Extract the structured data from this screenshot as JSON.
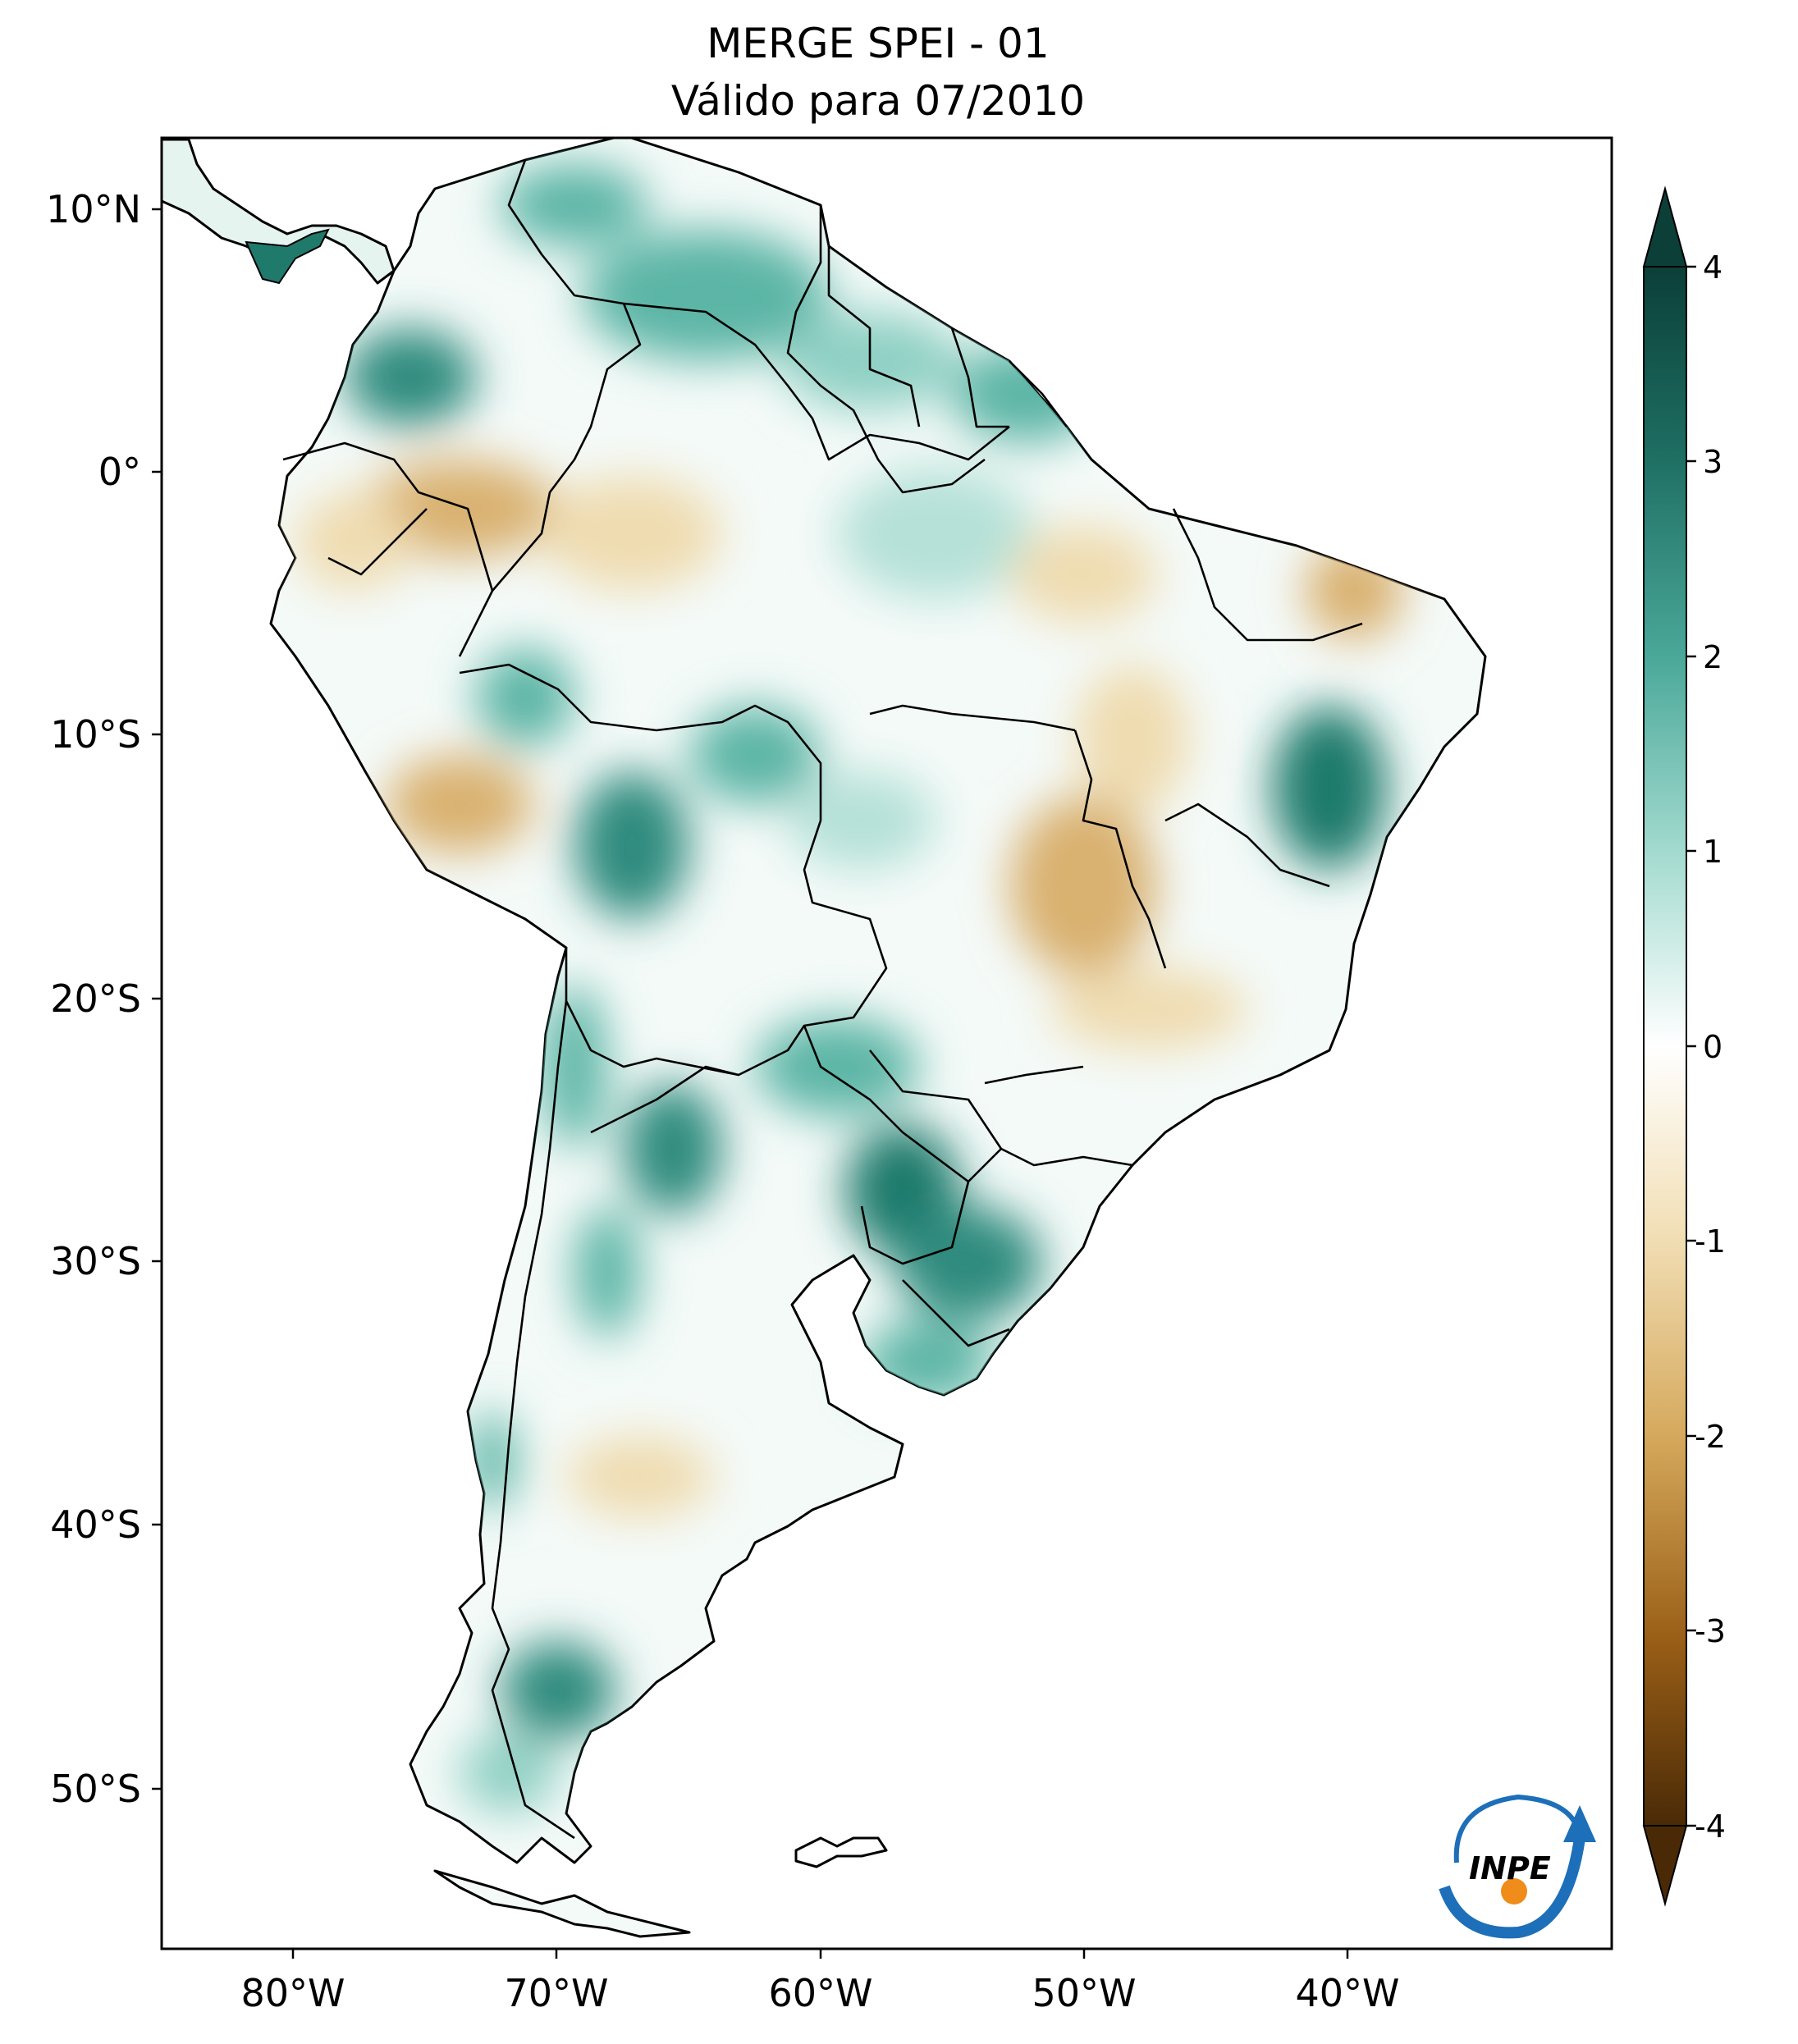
{
  "title": {
    "line1": "MERGE   SPEI - 01",
    "line2": "Válido para 07/2010"
  },
  "axes": {
    "lat_ticks": [
      "10°N",
      "0°",
      "10°S",
      "20°S",
      "30°S",
      "40°S",
      "50°S"
    ],
    "lon_ticks": [
      "80°W",
      "70°W",
      "60°W",
      "50°W",
      "40°W"
    ],
    "lon_range_deg": [
      -85,
      -30
    ],
    "lat_range_deg": [
      -56,
      13
    ]
  },
  "colorbar": {
    "ticks": [
      "4",
      "3",
      "2",
      "1",
      "0",
      "-1",
      "-2",
      "-3",
      "-4"
    ],
    "range": [
      -4,
      4
    ],
    "extend": "both",
    "colors": {
      "max": "#0b3f38",
      "high": "#2e8b7e",
      "mid_high": "#8fd0c4",
      "zero": "#ffffff",
      "mid_low": "#ead29a",
      "low": "#bf812d",
      "min": "#4a2a06"
    }
  },
  "logo": {
    "text": "INPE",
    "color_blue": "#1c6fb8",
    "color_orange": "#f08c1a"
  },
  "colors": {
    "wet_strong": "#1f7a6c",
    "wet": "#5cb5a6",
    "wet_light": "#b5e1d8",
    "dry_light": "#efdcb0",
    "dry": "#d9b16f"
  }
}
